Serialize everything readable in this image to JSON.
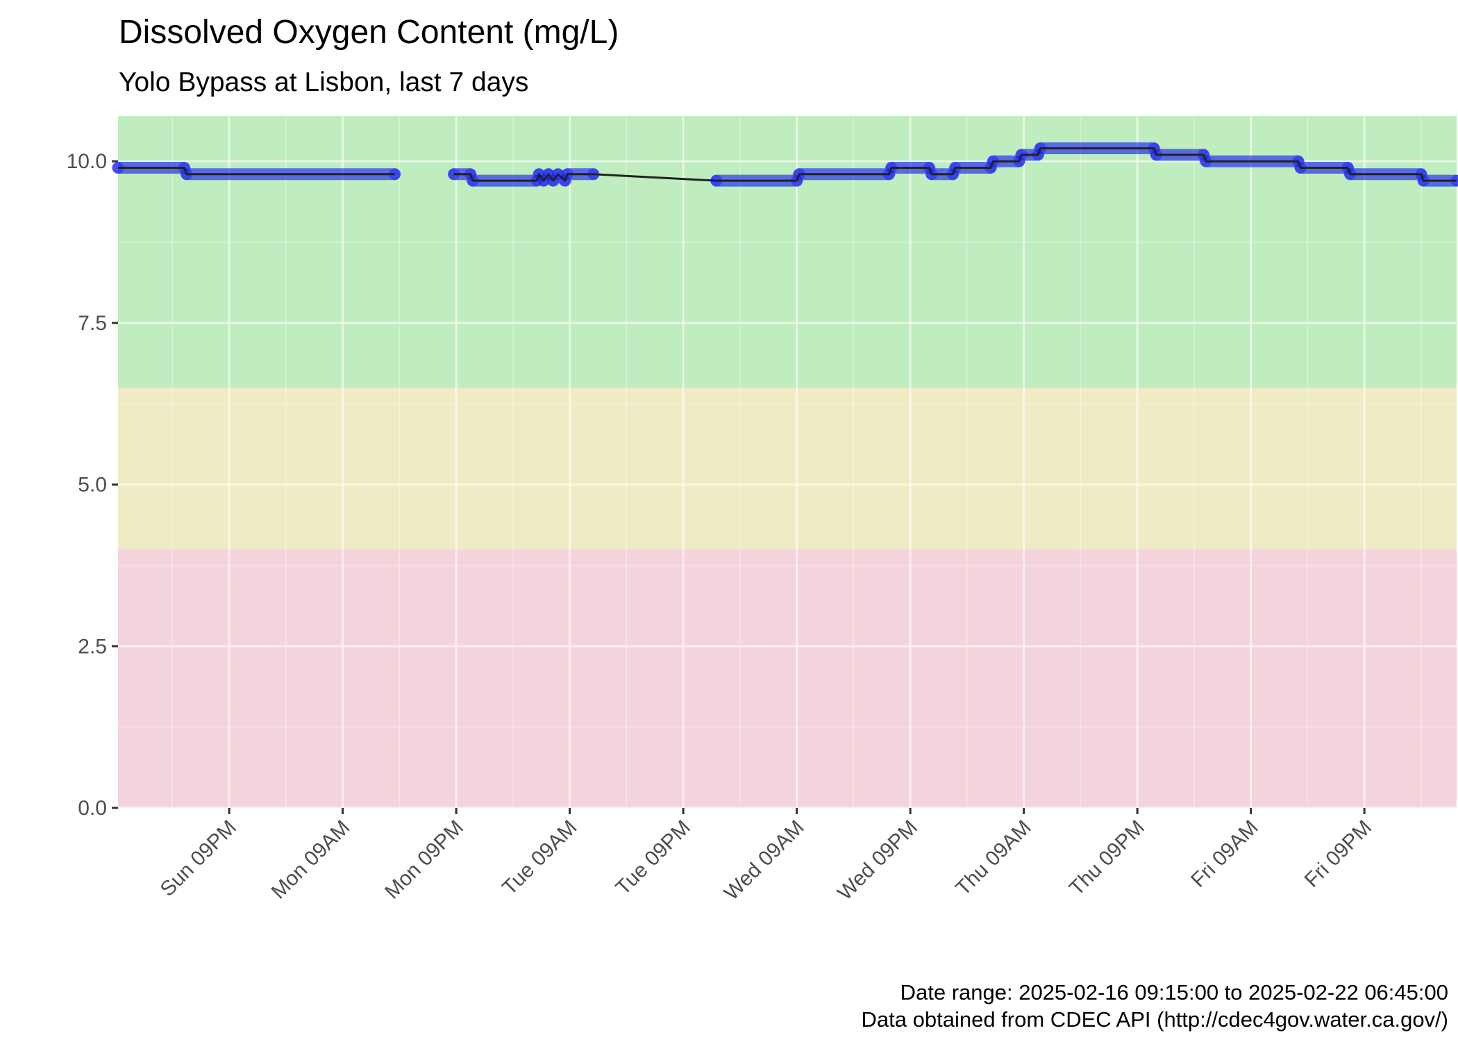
{
  "chart_data": {
    "type": "line",
    "title": "Dissolved Oxygen Content (mg/L)",
    "subtitle": "Yolo Bypass at Lisbon, last 7 days",
    "xlabel": "",
    "ylabel": "",
    "ylim": [
      0,
      10.7
    ],
    "y_ticks": [
      0.0,
      2.5,
      5.0,
      7.5,
      10.0
    ],
    "y_tick_labels": [
      "0.0",
      "2.5",
      "5.0",
      "7.5",
      "10.0"
    ],
    "x_range": [
      "2025-02-16 09:15",
      "2025-02-22 06:45"
    ],
    "x_ticks": [
      "2025-02-16 21:00",
      "2025-02-17 09:00",
      "2025-02-17 21:00",
      "2025-02-18 09:00",
      "2025-02-18 21:00",
      "2025-02-19 09:00",
      "2025-02-19 21:00",
      "2025-02-20 09:00",
      "2025-02-20 21:00",
      "2025-02-21 09:00",
      "2025-02-21 21:00"
    ],
    "x_tick_labels": [
      "Sun 09PM",
      "Mon 09AM",
      "Mon 09PM",
      "Tue 09AM",
      "Tue 09PM",
      "Wed 09AM",
      "Wed 09PM",
      "Thu 09AM",
      "Thu 09PM",
      "Fri 09AM",
      "Fri 09PM"
    ],
    "bands": [
      {
        "from": 6.5,
        "to": 10.7,
        "color": "#bfedbf"
      },
      {
        "from": 4.0,
        "to": 6.5,
        "color": "#eeebc5"
      },
      {
        "from": 0.0,
        "to": 4.0,
        "color": "#f4d4dc"
      }
    ],
    "colors": {
      "points": "#0000ff",
      "line": "#222222",
      "panel_grid": "#ffffff",
      "axis": "#333333"
    },
    "grid": true,
    "legend": "none",
    "series": [
      {
        "style": "line+points",
        "segments": [
          [
            [
              "2025-02-16 09:15",
              9.9
            ],
            [
              "2025-02-16 16:15",
              9.9
            ],
            [
              "2025-02-16 16:30",
              9.8
            ],
            [
              "2025-02-17 14:30",
              9.8
            ]
          ],
          [
            [
              "2025-02-17 20:45",
              9.8
            ],
            [
              "2025-02-17 22:30",
              9.8
            ],
            [
              "2025-02-17 22:45",
              9.7
            ],
            [
              "2025-02-18 05:30",
              9.7
            ],
            [
              "2025-02-18 05:45",
              9.8
            ],
            [
              "2025-02-18 06:15",
              9.7
            ],
            [
              "2025-02-18 06:45",
              9.8
            ],
            [
              "2025-02-18 07:15",
              9.7
            ],
            [
              "2025-02-18 07:45",
              9.8
            ],
            [
              "2025-02-18 08:30",
              9.7
            ],
            [
              "2025-02-18 08:45",
              9.8
            ],
            [
              "2025-02-18 11:30",
              9.8
            ]
          ]
        ]
      },
      {
        "style": "line",
        "segments": [
          [
            [
              "2025-02-18 11:30",
              9.8
            ],
            [
              "2025-02-19 00:30",
              9.7
            ]
          ]
        ]
      },
      {
        "style": "line+points",
        "segments": [
          [
            [
              "2025-02-19 00:30",
              9.7
            ],
            [
              "2025-02-19 09:00",
              9.7
            ],
            [
              "2025-02-19 09:15",
              9.8
            ],
            [
              "2025-02-19 18:45",
              9.8
            ],
            [
              "2025-02-19 19:00",
              9.9
            ],
            [
              "2025-02-19 23:00",
              9.9
            ],
            [
              "2025-02-19 23:15",
              9.8
            ],
            [
              "2025-02-20 01:30",
              9.8
            ],
            [
              "2025-02-20 01:45",
              9.9
            ],
            [
              "2025-02-20 05:30",
              9.9
            ],
            [
              "2025-02-20 05:45",
              10.0
            ],
            [
              "2025-02-20 08:30",
              10.0
            ],
            [
              "2025-02-20 08:45",
              10.1
            ],
            [
              "2025-02-20 10:30",
              10.1
            ],
            [
              "2025-02-20 10:45",
              10.2
            ],
            [
              "2025-02-20 22:45",
              10.2
            ],
            [
              "2025-02-20 23:00",
              10.1
            ],
            [
              "2025-02-21 04:00",
              10.1
            ],
            [
              "2025-02-21 04:15",
              10.0
            ],
            [
              "2025-02-21 14:00",
              10.0
            ],
            [
              "2025-02-21 14:15",
              9.9
            ],
            [
              "2025-02-21 19:15",
              9.9
            ],
            [
              "2025-02-21 19:30",
              9.8
            ],
            [
              "2025-02-22 03:00",
              9.8
            ],
            [
              "2025-02-22 03:15",
              9.7
            ],
            [
              "2025-02-22 06:45",
              9.7
            ]
          ]
        ]
      }
    ],
    "caption": [
      "Date range: 2025-02-16 09:15:00 to 2025-02-22 06:45:00",
      "Data obtained from CDEC API (http://cdec4gov.water.ca.gov/)"
    ]
  }
}
